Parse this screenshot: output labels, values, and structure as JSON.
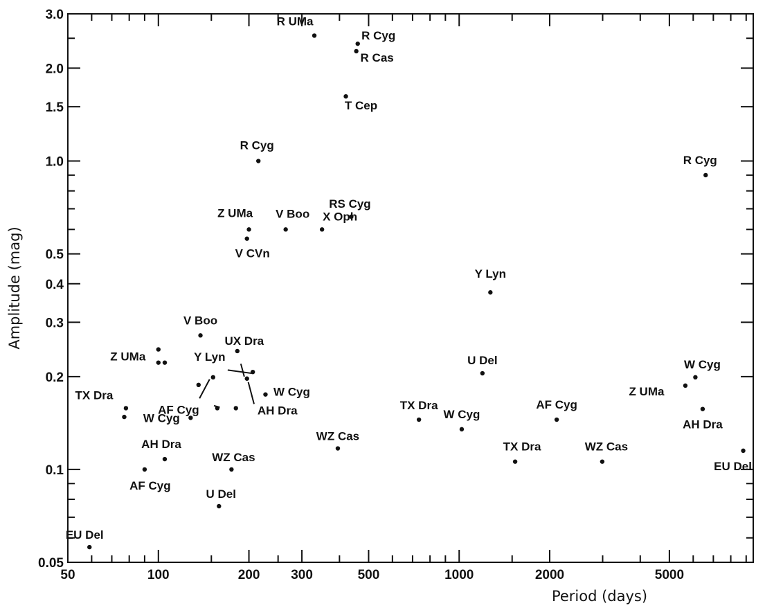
{
  "chart_data": {
    "type": "scatter",
    "title": "",
    "xlabel": "Period (days)",
    "ylabel": "Amplitude (mag)",
    "x_scale": "log",
    "y_scale": "log",
    "xlim": [
      50,
      9500
    ],
    "ylim": [
      0.05,
      3.0
    ],
    "grid": false,
    "x_ticks": [
      50,
      100,
      200,
      300,
      500,
      1000,
      2000,
      5000
    ],
    "x_tick_labels": [
      "50",
      "100",
      "200",
      "300",
      "500",
      "1000",
      "2000",
      "5000"
    ],
    "y_ticks": [
      0.05,
      0.1,
      0.2,
      0.3,
      0.4,
      0.5,
      1.0,
      1.5,
      2.0,
      3.0
    ],
    "y_tick_labels": [
      "0.05",
      "0.1",
      "0.2",
      "0.3",
      "0.4",
      "0.5",
      "1.0",
      "1.5",
      "2.0",
      "3.0"
    ],
    "points": [
      {
        "x": 330,
        "y": 2.55,
        "label": "R UMa"
      },
      {
        "x": 460,
        "y": 2.4,
        "label": "R Cyg"
      },
      {
        "x": 455,
        "y": 2.27,
        "label": "R Cas"
      },
      {
        "x": 420,
        "y": 1.62,
        "label": "T Cep"
      },
      {
        "x": 215,
        "y": 1.0,
        "label": "R Cyg"
      },
      {
        "x": 6600,
        "y": 0.9,
        "label": "R Cyg"
      },
      {
        "x": 438,
        "y": 0.66,
        "label": "RS Cyg"
      },
      {
        "x": 200,
        "y": 0.6,
        "label": "Z UMa"
      },
      {
        "x": 197,
        "y": 0.56,
        "label": "V CVn"
      },
      {
        "x": 265,
        "y": 0.6,
        "label": "V Boo"
      },
      {
        "x": 350,
        "y": 0.6,
        "label": "X Oph"
      },
      {
        "x": 1270,
        "y": 0.375,
        "label": "Y Lyn"
      },
      {
        "x": 138,
        "y": 0.272,
        "label": "V Boo"
      },
      {
        "x": 100,
        "y": 0.245,
        "label": "Z UMa"
      },
      {
        "x": 100,
        "y": 0.222,
        "label": ""
      },
      {
        "x": 105,
        "y": 0.222,
        "label": ""
      },
      {
        "x": 183,
        "y": 0.242,
        "label": "UX Dra"
      },
      {
        "x": 136,
        "y": 0.188,
        "label": "Y Lyn"
      },
      {
        "x": 206,
        "y": 0.207,
        "label": ""
      },
      {
        "x": 152,
        "y": 0.199,
        "label": ""
      },
      {
        "x": 197,
        "y": 0.197,
        "label": ""
      },
      {
        "x": 227,
        "y": 0.175,
        "label": "W Cyg"
      },
      {
        "x": 157,
        "y": 0.158,
        "label": "AF Cyg"
      },
      {
        "x": 181,
        "y": 0.158,
        "label": "AH Dra"
      },
      {
        "x": 78,
        "y": 0.158,
        "label": "TX Dra"
      },
      {
        "x": 77,
        "y": 0.148,
        "label": ""
      },
      {
        "x": 128,
        "y": 0.147,
        "label": "W Cyg"
      },
      {
        "x": 1195,
        "y": 0.205,
        "label": "U Del"
      },
      {
        "x": 6100,
        "y": 0.199,
        "label": "W Cyg"
      },
      {
        "x": 5650,
        "y": 0.187,
        "label": "Z UMa"
      },
      {
        "x": 6450,
        "y": 0.157,
        "label": "AH Dra"
      },
      {
        "x": 735,
        "y": 0.145,
        "label": "TX Dra"
      },
      {
        "x": 1020,
        "y": 0.135,
        "label": "W Cyg"
      },
      {
        "x": 2110,
        "y": 0.145,
        "label": "AF Cyg"
      },
      {
        "x": 395,
        "y": 0.117,
        "label": "WZ Cas"
      },
      {
        "x": 105,
        "y": 0.108,
        "label": "AH Dra"
      },
      {
        "x": 1535,
        "y": 0.106,
        "label": "TX Dra"
      },
      {
        "x": 2990,
        "y": 0.106,
        "label": "WZ Cas"
      },
      {
        "x": 8800,
        "y": 0.115,
        "label": "EU Del"
      },
      {
        "x": 90,
        "y": 0.1,
        "label": "AF Cyg"
      },
      {
        "x": 175,
        "y": 0.1,
        "label": "WZ Cas"
      },
      {
        "x": 159,
        "y": 0.076,
        "label": "U Del"
      },
      {
        "x": 59,
        "y": 0.056,
        "label": "EU Del"
      }
    ]
  }
}
